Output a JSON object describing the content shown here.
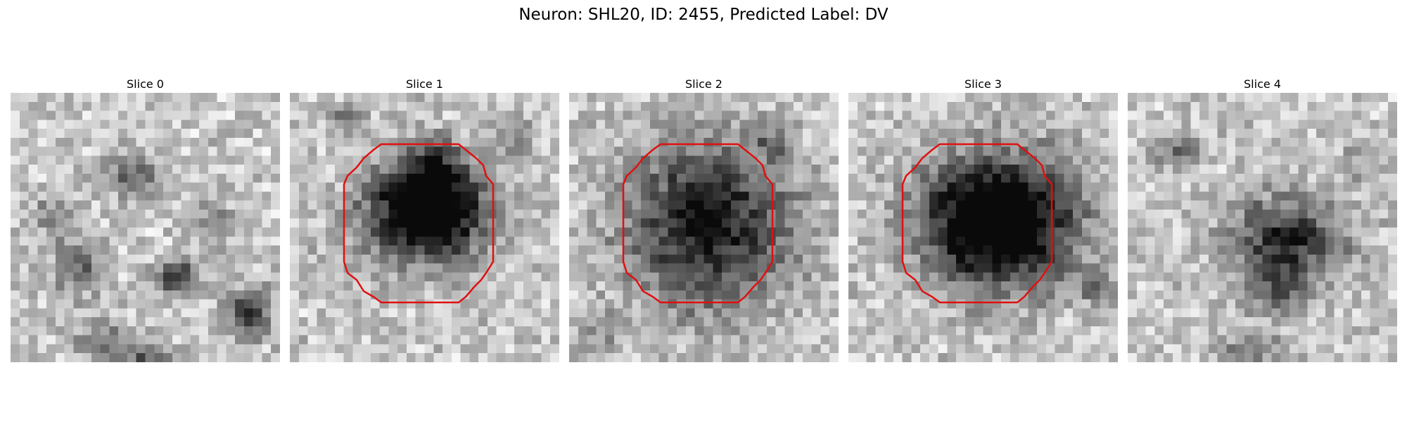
{
  "figure": {
    "title": "Neuron: SHL20, ID: 2455, Predicted Label: DV",
    "roi_color": "#e01010",
    "colormap": "grayscale"
  },
  "slices": [
    {
      "title": "Slice 0",
      "has_roi": false
    },
    {
      "title": "Slice 1",
      "has_roi": true
    },
    {
      "title": "Slice 2",
      "has_roi": true
    },
    {
      "title": "Slice 3",
      "has_roi": true
    },
    {
      "title": "Slice 4",
      "has_roi": false
    }
  ]
}
